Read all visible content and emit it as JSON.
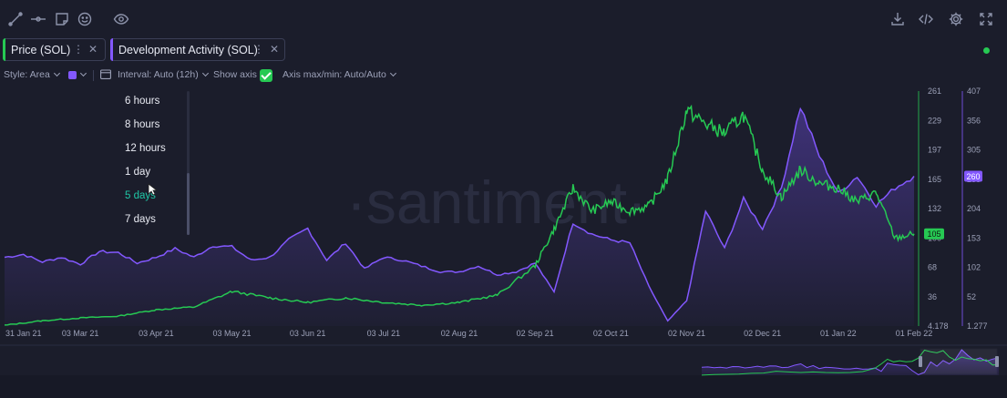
{
  "toolbar": {
    "left_icons": [
      "line-tool-icon",
      "horizontal-line-icon",
      "note-icon",
      "emoji-icon",
      "eye-icon"
    ],
    "right_icons": [
      "download-icon",
      "embed-code-icon",
      "settings-gear-icon",
      "fullscreen-icon"
    ]
  },
  "metrics": [
    {
      "label": "Price (SOL)",
      "color": "#26c953"
    },
    {
      "label": "Development Activity (SOL)",
      "color": "#8358ff"
    }
  ],
  "settings": {
    "style_label": "Style: Area",
    "interval_label": "Interval: Auto (12h)",
    "show_axis_label": "Show axis",
    "axis_maxmin_label": "Axis max/min: Auto/Auto"
  },
  "interval_dropdown": {
    "items": [
      "6 hours",
      "8 hours",
      "12 hours",
      "1 day",
      "5 days",
      "7 days"
    ],
    "hovered": "5 days"
  },
  "watermark": "·santiment·",
  "chart_data": {
    "type": "line",
    "x_ticks": [
      "31 Jan 21",
      "03 Mar 21",
      "03 Apr 21",
      "03 May 21",
      "03 Jun 21",
      "03 Jul 21",
      "02 Aug 21",
      "02 Sep 21",
      "02 Oct 21",
      "02 Nov 21",
      "02 Dec 21",
      "01 Jan 22",
      "01 Feb 22"
    ],
    "y_price_ticks": [
      "261",
      "229",
      "197",
      "165",
      "132",
      "100",
      "68",
      "36",
      "4.178"
    ],
    "y_dev_ticks": [
      "407",
      "356",
      "305",
      "255",
      "204",
      "153",
      "102",
      "52",
      "1.277"
    ],
    "price_range": [
      4.178,
      261
    ],
    "dev_range": [
      1.277,
      407
    ],
    "current_price_label": "105",
    "current_dev_label": "260",
    "series": [
      {
        "name": "Price (SOL)",
        "color": "#26c953",
        "axis": "left",
        "x": [
          0,
          0.5,
          1,
          1.5,
          2,
          2.5,
          3,
          3.5,
          4,
          4.5,
          5,
          5.5,
          6,
          6.5,
          7,
          7.25,
          7.5,
          7.75,
          8,
          8.25,
          8.5,
          8.75,
          9,
          9.25,
          9.5,
          9.75,
          10,
          10.25,
          10.5,
          10.75,
          11,
          11.25,
          11.5,
          11.75,
          12
        ],
        "values": [
          5,
          10,
          13,
          15,
          22,
          25,
          42,
          35,
          30,
          35,
          30,
          27,
          30,
          38,
          70,
          110,
          155,
          130,
          140,
          130,
          135,
          165,
          240,
          225,
          215,
          235,
          175,
          145,
          175,
          160,
          155,
          140,
          150,
          100,
          105
        ]
      },
      {
        "name": "Development Activity (SOL)",
        "color": "#8358ff",
        "axis": "right",
        "x": [
          0,
          0.25,
          0.5,
          0.75,
          1,
          1.25,
          1.5,
          1.75,
          2,
          2.25,
          2.5,
          2.75,
          3,
          3.25,
          3.5,
          3.75,
          4,
          4.25,
          4.5,
          4.75,
          5,
          5.25,
          5.5,
          5.75,
          6,
          6.25,
          6.5,
          6.75,
          7,
          7.25,
          7.5,
          7.75,
          8,
          8.25,
          8.5,
          8.75,
          9,
          9.25,
          9.5,
          9.75,
          10,
          10.25,
          10.5,
          10.75,
          11,
          11.25,
          11.5,
          11.75,
          12
        ],
        "values": [
          120,
          125,
          112,
          120,
          108,
          130,
          128,
          110,
          120,
          135,
          120,
          140,
          138,
          115,
          120,
          150,
          170,
          115,
          145,
          100,
          120,
          115,
          105,
          95,
          95,
          105,
          90,
          95,
          110,
          60,
          180,
          160,
          150,
          145,
          70,
          10,
          45,
          200,
          135,
          220,
          170,
          240,
          380,
          295,
          230,
          260,
          210,
          240,
          260
        ]
      }
    ]
  }
}
